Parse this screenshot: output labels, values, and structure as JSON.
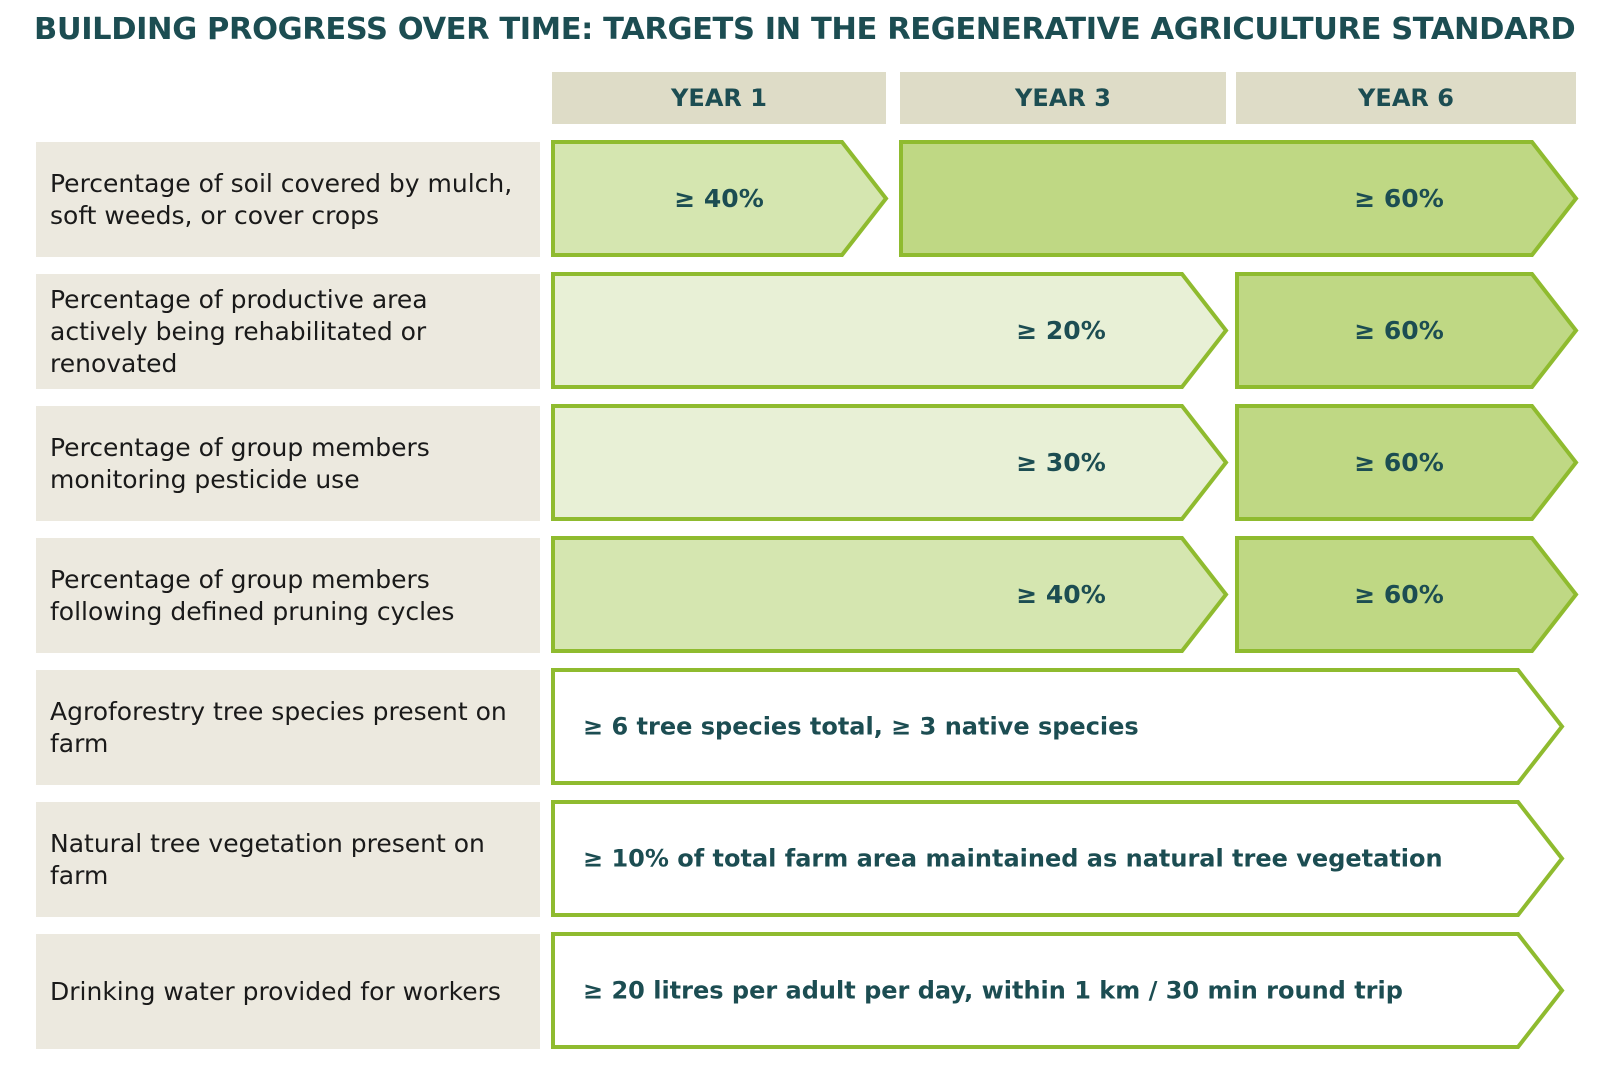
{
  "title": "BUILDING PROGRESS OVER TIME: TARGETS IN THE REGENERATIVE AGRICULTURE STANDARD",
  "years": [
    "YEAR 1",
    "YEAR 3",
    "YEAR 6"
  ],
  "colors": {
    "title_text": "#1c4d52",
    "year_header_bg": "#dedcc7",
    "label_bg": "#ece9df",
    "arrow_border": "#8fbb2f",
    "light_fill": "#e8f0d6",
    "medium_fill": "#d5e6b0",
    "strong_fill": "#bfd884",
    "white_fill": "#ffffff"
  },
  "rows": [
    {
      "label": "Percentage of soil covered by mulch, soft weeds, or cover crops",
      "targets": [
        {
          "text": "≥ 40%",
          "from": "YEAR 1",
          "to": "YEAR 1",
          "fill": "medium"
        },
        {
          "text": "≥ 60%",
          "from": "YEAR 3",
          "to": "YEAR 6",
          "fill": "strong"
        }
      ]
    },
    {
      "label": "Percentage of productive area actively being rehabilitated or renovated",
      "targets": [
        {
          "text": "≥ 20%",
          "from": "YEAR 1",
          "to": "YEAR 3",
          "fill": "light"
        },
        {
          "text": "≥ 60%",
          "from": "YEAR 6",
          "to": "YEAR 6",
          "fill": "strong"
        }
      ]
    },
    {
      "label": "Percentage of group members monitoring pesticide use",
      "targets": [
        {
          "text": "≥ 30%",
          "from": "YEAR 1",
          "to": "YEAR 3",
          "fill": "light"
        },
        {
          "text": "≥ 60%",
          "from": "YEAR 6",
          "to": "YEAR 6",
          "fill": "strong"
        }
      ]
    },
    {
      "label": "Percentage of group members following defined pruning cycles",
      "targets": [
        {
          "text": "≥ 40%",
          "from": "YEAR 1",
          "to": "YEAR 3",
          "fill": "medium"
        },
        {
          "text": "≥ 60%",
          "from": "YEAR 6",
          "to": "YEAR 6",
          "fill": "strong"
        }
      ]
    },
    {
      "label": "Agroforestry tree species present on farm",
      "targets": [
        {
          "text": "≥ 6 tree species total, ≥ 3 native species",
          "from": "YEAR 1",
          "to": "YEAR 6",
          "fill": "white"
        }
      ]
    },
    {
      "label": "Natural tree vegetation present on farm",
      "targets": [
        {
          "text": "≥ 10% of total farm area maintained as natural tree vegetation",
          "from": "YEAR 1",
          "to": "YEAR 6",
          "fill": "white"
        }
      ]
    },
    {
      "label": "Drinking water provided for workers",
      "targets": [
        {
          "text": "≥ 20 litres per adult per day, within 1 km / 30 min round trip",
          "from": "YEAR 1",
          "to": "YEAR 6",
          "fill": "white"
        }
      ]
    }
  ]
}
